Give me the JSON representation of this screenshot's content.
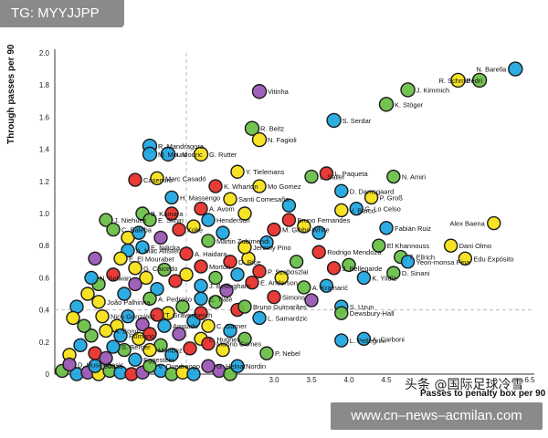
{
  "header_tag": {
    "text": "TG: MYYJJPP"
  },
  "banner": {
    "text": "www.cn–news–acmilan.com"
  },
  "watermark": {
    "text": "头条 @国际足球冷雪"
  },
  "colors": {
    "green": "#6cc04a",
    "blue": "#22a8e0",
    "yellow": "#f5e11a",
    "red": "#e8302c",
    "purple": "#9b59b6",
    "stroke": "#1a1a1a"
  },
  "chart_data": {
    "type": "scatter",
    "xlabel": "Passes to penalty box per 90",
    "ylabel": "Through passes per 90",
    "xlim": [
      0,
      6.5
    ],
    "ylim": [
      0,
      2.0
    ],
    "x_ticks": [
      "3.0",
      "3.5",
      "4.0",
      "4.5",
      "6.5"
    ],
    "y_ticks": [
      "0",
      "0.2",
      "0.4",
      "0.6",
      "0.8",
      "1.0",
      "1.2",
      "1.4",
      "1.6",
      "1.8",
      "2.0"
    ],
    "reference_lines": {
      "x": 1.8,
      "y": 0.4
    },
    "labeled_points": [
      {
        "name": "N. Barella",
        "x": 6.3,
        "y": 1.9,
        "color": "blue"
      },
      {
        "name": "Pedri",
        "x": 5.5,
        "y": 1.83,
        "color": "yellow"
      },
      {
        "name": "R. Schmid",
        "x": 5.8,
        "y": 1.83,
        "color": "green"
      },
      {
        "name": "Vitinha",
        "x": 2.8,
        "y": 1.76,
        "color": "purple"
      },
      {
        "name": "J. Kimmich",
        "x": 4.8,
        "y": 1.77,
        "color": "green"
      },
      {
        "name": "K. Stöger",
        "x": 4.5,
        "y": 1.68,
        "color": "green"
      },
      {
        "name": "S. Serdar",
        "x": 3.8,
        "y": 1.58,
        "color": "blue"
      },
      {
        "name": "R. Beitz",
        "x": 2.7,
        "y": 1.53,
        "color": "green"
      },
      {
        "name": "N. Fagioli",
        "x": 2.8,
        "y": 1.46,
        "color": "yellow"
      },
      {
        "name": "R. Mandragora",
        "x": 1.3,
        "y": 1.42,
        "color": "blue"
      },
      {
        "name": "M. Mount",
        "x": 1.3,
        "y": 1.37,
        "color": "blue"
      },
      {
        "name": "I. Modric",
        "x": 1.55,
        "y": 1.37,
        "color": "blue"
      },
      {
        "name": "G. Rutter",
        "x": 2.0,
        "y": 1.37,
        "color": "yellow"
      },
      {
        "name": "Y. Tielemans",
        "x": 2.5,
        "y": 1.26,
        "color": "yellow"
      },
      {
        "name": "L. Paqueta",
        "x": 3.7,
        "y": 1.25,
        "color": "red"
      },
      {
        "name": "N. Amiri",
        "x": 4.6,
        "y": 1.23,
        "color": "green"
      },
      {
        "name": "Casemiro",
        "x": 1.1,
        "y": 1.21,
        "color": "red"
      },
      {
        "name": "Marc Casadó",
        "x": 1.4,
        "y": 1.22,
        "color": "yellow"
      },
      {
        "name": "L. Sailer",
        "x": 3.5,
        "y": 1.23,
        "color": "green"
      },
      {
        "name": "K. Wharton",
        "x": 2.2,
        "y": 1.17,
        "color": "red"
      },
      {
        "name": "Mo Gomez",
        "x": 2.8,
        "y": 1.17,
        "color": "yellow"
      },
      {
        "name": "D. Damsgaard",
        "x": 3.9,
        "y": 1.14,
        "color": "blue"
      },
      {
        "name": "P. Groß",
        "x": 4.3,
        "y": 1.1,
        "color": "yellow"
      },
      {
        "name": "H. Massengo",
        "x": 1.6,
        "y": 1.1,
        "color": "blue"
      },
      {
        "name": "Santi Comesaña",
        "x": 2.4,
        "y": 1.09,
        "color": "yellow"
      },
      {
        "name": "G. Lo Celso",
        "x": 4.1,
        "y": 1.03,
        "color": "blue"
      },
      {
        "name": "A. Avom",
        "x": 2.0,
        "y": 1.03,
        "color": "red"
      },
      {
        "name": "V. Barco",
        "x": 3.9,
        "y": 1.02,
        "color": "yellow"
      },
      {
        "name": "B. Kamara",
        "x": 1.2,
        "y": 1.0,
        "color": "green"
      },
      {
        "name": "E. Skhiri",
        "x": 1.3,
        "y": 0.96,
        "color": "green"
      },
      {
        "name": "Henderson",
        "x": 2.1,
        "y": 0.96,
        "color": "blue"
      },
      {
        "name": "Bruno Fernandes",
        "x": 3.2,
        "y": 0.96,
        "color": "red"
      },
      {
        "name": "J. Niehues",
        "x": 0.7,
        "y": 0.96,
        "color": "green"
      },
      {
        "name": "C. Baleba",
        "x": 0.8,
        "y": 0.9,
        "color": "green"
      },
      {
        "name": "Koke",
        "x": 1.7,
        "y": 0.9,
        "color": "red"
      },
      {
        "name": "M. Gibbs-White",
        "x": 3.0,
        "y": 0.9,
        "color": "red"
      },
      {
        "name": "Fabián Ruiz",
        "x": 4.5,
        "y": 0.91,
        "color": "blue"
      },
      {
        "name": "Alex Baena",
        "x": 6.0,
        "y": 0.94,
        "color": "yellow"
      },
      {
        "name": "Martin Zubimendi",
        "x": 2.1,
        "y": 0.83,
        "color": "green"
      },
      {
        "name": "El Khannouss",
        "x": 4.4,
        "y": 0.8,
        "color": "green"
      },
      {
        "name": "Dani Olmo",
        "x": 5.4,
        "y": 0.8,
        "color": "yellow"
      },
      {
        "name": "E. Ndicka",
        "x": 1.2,
        "y": 0.79,
        "color": "blue"
      },
      {
        "name": "A. Mac Allister",
        "x": 1.0,
        "y": 0.77,
        "color": "blue"
      },
      {
        "name": "Jeremy Pino",
        "x": 2.6,
        "y": 0.79,
        "color": "yellow"
      },
      {
        "name": "Rodrigo Mendoza",
        "x": 3.6,
        "y": 0.76,
        "color": "red"
      },
      {
        "name": "Edu Expósito",
        "x": 5.6,
        "y": 0.72,
        "color": "yellow"
      },
      {
        "name": "A. Haidara",
        "x": 1.8,
        "y": 0.75,
        "color": "red"
      },
      {
        "name": "T. Ellrich",
        "x": 4.7,
        "y": 0.73,
        "color": "green"
      },
      {
        "name": "Yeon-monsa Pina",
        "x": 4.8,
        "y": 0.7,
        "color": "blue"
      },
      {
        "name": "E. El Mourabet",
        "x": 0.9,
        "y": 0.72,
        "color": "yellow"
      },
      {
        "name": "D. Rice",
        "x": 2.4,
        "y": 0.7,
        "color": "red"
      },
      {
        "name": "G. Caicedo",
        "x": 1.1,
        "y": 0.66,
        "color": "yellow"
      },
      {
        "name": "Morton",
        "x": 2.0,
        "y": 0.67,
        "color": "red"
      },
      {
        "name": "J. Bellegarde",
        "x": 3.8,
        "y": 0.66,
        "color": "red"
      },
      {
        "name": "D. Sinani",
        "x": 4.6,
        "y": 0.63,
        "color": "green"
      },
      {
        "name": "P. Szoboszlai",
        "x": 2.8,
        "y": 0.64,
        "color": "red"
      },
      {
        "name": "K. Yildiz",
        "x": 4.2,
        "y": 0.6,
        "color": "blue"
      },
      {
        "name": "N. Selwan",
        "x": 0.5,
        "y": 0.6,
        "color": "blue"
      },
      {
        "name": "E. Anderson",
        "x": 2.7,
        "y": 0.57,
        "color": "red"
      },
      {
        "name": "A. Kramarić",
        "x": 3.4,
        "y": 0.54,
        "color": "green"
      },
      {
        "name": "J. Bellingham",
        "x": 2.0,
        "y": 0.55,
        "color": "blue"
      },
      {
        "name": "Simons",
        "x": 3.0,
        "y": 0.48,
        "color": "red"
      },
      {
        "name": "João Palhinha",
        "x": 0.6,
        "y": 0.45,
        "color": "yellow"
      },
      {
        "name": "A. Pedroso",
        "x": 1.3,
        "y": 0.47,
        "color": "green"
      },
      {
        "name": "E. Tiaté",
        "x": 2.0,
        "y": 0.47,
        "color": "blue"
      },
      {
        "name": "Bruno Guimarães",
        "x": 2.6,
        "y": 0.42,
        "color": "green"
      },
      {
        "name": "S. Uzun",
        "x": 3.9,
        "y": 0.42,
        "color": "blue"
      },
      {
        "name": "Nico González",
        "x": 0.65,
        "y": 0.36,
        "color": "yellow"
      },
      {
        "name": "T. Gravenberch",
        "x": 1.4,
        "y": 0.37,
        "color": "red"
      },
      {
        "name": "L. Samardzic",
        "x": 2.8,
        "y": 0.35,
        "color": "blue"
      },
      {
        "name": "Dewsbury-Hall",
        "x": 3.9,
        "y": 0.38,
        "color": "green"
      },
      {
        "name": "Ampadu",
        "x": 1.5,
        "y": 0.3,
        "color": "blue"
      },
      {
        "name": "C. Garner",
        "x": 2.1,
        "y": 0.3,
        "color": "yellow"
      },
      {
        "name": "A. Bong",
        "x": 0.7,
        "y": 0.27,
        "color": "yellow"
      },
      {
        "name": "Romano",
        "x": 0.9,
        "y": 0.24,
        "color": "blue"
      },
      {
        "name": "L. Hughes",
        "x": 2.0,
        "y": 0.22,
        "color": "yellow"
      },
      {
        "name": "A. Carboni",
        "x": 4.2,
        "y": 0.22,
        "color": "blue"
      },
      {
        "name": "L. Pellegrini",
        "x": 3.9,
        "y": 0.21,
        "color": "blue"
      },
      {
        "name": "Maorio Gomes",
        "x": 2.1,
        "y": 0.19,
        "color": "red"
      },
      {
        "name": "S. Berger",
        "x": 0.8,
        "y": 0.17,
        "color": "blue"
      },
      {
        "name": "P. Nebel",
        "x": 2.9,
        "y": 0.13,
        "color": "green"
      },
      {
        "name": "Mendez",
        "x": 1.3,
        "y": 0.15,
        "color": "yellow"
      },
      {
        "name": "Eggestein",
        "x": 1.1,
        "y": 0.09,
        "color": "blue"
      },
      {
        "name": "D. Huseinbasic",
        "x": 0.2,
        "y": 0.06,
        "color": "purple"
      },
      {
        "name": "Souza",
        "x": 0.55,
        "y": 0.05,
        "color": "blue"
      },
      {
        "name": "V. Ouedraogo",
        "x": 1.3,
        "y": 0.05,
        "color": "green"
      },
      {
        "name": "G. Helnat",
        "x": 2.1,
        "y": 0.05,
        "color": "purple"
      },
      {
        "name": "Nordin",
        "x": 2.5,
        "y": 0.05,
        "color": "blue"
      }
    ],
    "unlabeled_points": [
      {
        "x": 0.1,
        "y": 0.02,
        "color": "green"
      },
      {
        "x": 0.3,
        "y": 0.0,
        "color": "blue"
      },
      {
        "x": 0.45,
        "y": 0.01,
        "color": "purple"
      },
      {
        "x": 0.6,
        "y": 0.0,
        "color": "yellow"
      },
      {
        "x": 0.75,
        "y": 0.02,
        "color": "green"
      },
      {
        "x": 0.9,
        "y": 0.01,
        "color": "blue"
      },
      {
        "x": 1.05,
        "y": 0.0,
        "color": "red"
      },
      {
        "x": 1.2,
        "y": 0.01,
        "color": "purple"
      },
      {
        "x": 1.45,
        "y": 0.02,
        "color": "blue"
      },
      {
        "x": 1.6,
        "y": 0.0,
        "color": "green"
      },
      {
        "x": 1.75,
        "y": 0.01,
        "color": "yellow"
      },
      {
        "x": 1.9,
        "y": 0.0,
        "color": "blue"
      },
      {
        "x": 2.25,
        "y": 0.02,
        "color": "purple"
      },
      {
        "x": 2.4,
        "y": 0.0,
        "color": "green"
      },
      {
        "x": 0.2,
        "y": 0.12,
        "color": "yellow"
      },
      {
        "x": 0.35,
        "y": 0.18,
        "color": "blue"
      },
      {
        "x": 0.5,
        "y": 0.24,
        "color": "green"
      },
      {
        "x": 0.55,
        "y": 0.13,
        "color": "red"
      },
      {
        "x": 0.7,
        "y": 0.1,
        "color": "purple"
      },
      {
        "x": 0.85,
        "y": 0.3,
        "color": "yellow"
      },
      {
        "x": 0.95,
        "y": 0.15,
        "color": "green"
      },
      {
        "x": 1.0,
        "y": 0.36,
        "color": "blue"
      },
      {
        "x": 1.15,
        "y": 0.22,
        "color": "yellow"
      },
      {
        "x": 1.2,
        "y": 0.31,
        "color": "purple"
      },
      {
        "x": 1.3,
        "y": 0.25,
        "color": "red"
      },
      {
        "x": 1.45,
        "y": 0.18,
        "color": "green"
      },
      {
        "x": 1.55,
        "y": 0.38,
        "color": "yellow"
      },
      {
        "x": 1.6,
        "y": 0.12,
        "color": "blue"
      },
      {
        "x": 1.7,
        "y": 0.25,
        "color": "purple"
      },
      {
        "x": 1.75,
        "y": 0.42,
        "color": "green"
      },
      {
        "x": 1.85,
        "y": 0.16,
        "color": "red"
      },
      {
        "x": 1.9,
        "y": 0.33,
        "color": "blue"
      },
      {
        "x": 2.3,
        "y": 0.15,
        "color": "yellow"
      },
      {
        "x": 2.4,
        "y": 0.27,
        "color": "blue"
      },
      {
        "x": 2.5,
        "y": 0.4,
        "color": "red"
      },
      {
        "x": 2.6,
        "y": 0.22,
        "color": "green"
      },
      {
        "x": 0.3,
        "y": 0.42,
        "color": "blue"
      },
      {
        "x": 0.45,
        "y": 0.5,
        "color": "yellow"
      },
      {
        "x": 0.6,
        "y": 0.56,
        "color": "green"
      },
      {
        "x": 0.8,
        "y": 0.62,
        "color": "red"
      },
      {
        "x": 0.95,
        "y": 0.5,
        "color": "blue"
      },
      {
        "x": 1.1,
        "y": 0.56,
        "color": "purple"
      },
      {
        "x": 1.25,
        "y": 0.6,
        "color": "yellow"
      },
      {
        "x": 1.4,
        "y": 0.53,
        "color": "blue"
      },
      {
        "x": 1.5,
        "y": 0.65,
        "color": "green"
      },
      {
        "x": 1.65,
        "y": 0.58,
        "color": "red"
      },
      {
        "x": 1.8,
        "y": 0.62,
        "color": "yellow"
      },
      {
        "x": 2.2,
        "y": 0.6,
        "color": "green"
      },
      {
        "x": 2.35,
        "y": 0.52,
        "color": "purple"
      },
      {
        "x": 2.5,
        "y": 0.62,
        "color": "blue"
      },
      {
        "x": 2.65,
        "y": 0.72,
        "color": "yellow"
      },
      {
        "x": 2.9,
        "y": 0.82,
        "color": "blue"
      },
      {
        "x": 3.1,
        "y": 0.6,
        "color": "yellow"
      },
      {
        "x": 3.3,
        "y": 0.7,
        "color": "green"
      },
      {
        "x": 1.0,
        "y": 0.85,
        "color": "yellow"
      },
      {
        "x": 1.15,
        "y": 0.88,
        "color": "blue"
      },
      {
        "x": 1.45,
        "y": 0.85,
        "color": "purple"
      },
      {
        "x": 1.6,
        "y": 1.0,
        "color": "red"
      },
      {
        "x": 1.9,
        "y": 0.92,
        "color": "yellow"
      },
      {
        "x": 2.3,
        "y": 0.88,
        "color": "blue"
      },
      {
        "x": 2.6,
        "y": 1.0,
        "color": "yellow"
      },
      {
        "x": 3.2,
        "y": 1.05,
        "color": "blue"
      },
      {
        "x": 3.4,
        "y": 0.92,
        "color": "yellow"
      },
      {
        "x": 3.6,
        "y": 0.88,
        "color": "blue"
      },
      {
        "x": 0.55,
        "y": 0.72,
        "color": "purple"
      },
      {
        "x": 0.4,
        "y": 0.3,
        "color": "green"
      },
      {
        "x": 0.25,
        "y": 0.35,
        "color": "yellow"
      },
      {
        "x": 2.0,
        "y": 0.38,
        "color": "red"
      },
      {
        "x": 2.2,
        "y": 0.45,
        "color": "green"
      },
      {
        "x": 3.5,
        "y": 0.46,
        "color": "purple"
      },
      {
        "x": 3.7,
        "y": 0.55,
        "color": "blue"
      },
      {
        "x": 4.0,
        "y": 0.68,
        "color": "green"
      }
    ]
  }
}
